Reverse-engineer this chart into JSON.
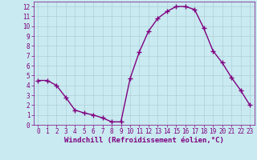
{
  "x": [
    0,
    1,
    2,
    3,
    4,
    5,
    6,
    7,
    8,
    9,
    10,
    11,
    12,
    13,
    14,
    15,
    16,
    17,
    18,
    19,
    20,
    21,
    22,
    23
  ],
  "y": [
    4.5,
    4.5,
    4.0,
    2.8,
    1.5,
    1.2,
    1.0,
    0.7,
    0.3,
    0.3,
    4.7,
    7.4,
    9.5,
    10.8,
    11.5,
    12.0,
    12.0,
    11.7,
    9.8,
    7.5,
    6.3,
    4.8,
    3.5,
    2.0
  ],
  "line_color": "#800080",
  "marker": "+",
  "marker_size": 4,
  "background_color": "#c8eaf0",
  "grid_color": "#b0d0d8",
  "xlabel": "Windchill (Refroidissement éolien,°C)",
  "ylabel": "",
  "xlim": [
    -0.5,
    23.5
  ],
  "ylim": [
    0,
    12.5
  ],
  "yticks": [
    0,
    1,
    2,
    3,
    4,
    5,
    6,
    7,
    8,
    9,
    10,
    11,
    12
  ],
  "xticks": [
    0,
    1,
    2,
    3,
    4,
    5,
    6,
    7,
    8,
    9,
    10,
    11,
    12,
    13,
    14,
    15,
    16,
    17,
    18,
    19,
    20,
    21,
    22,
    23
  ],
  "tick_label_fontsize": 5.5,
  "xlabel_fontsize": 6.5,
  "line_width": 1.0
}
